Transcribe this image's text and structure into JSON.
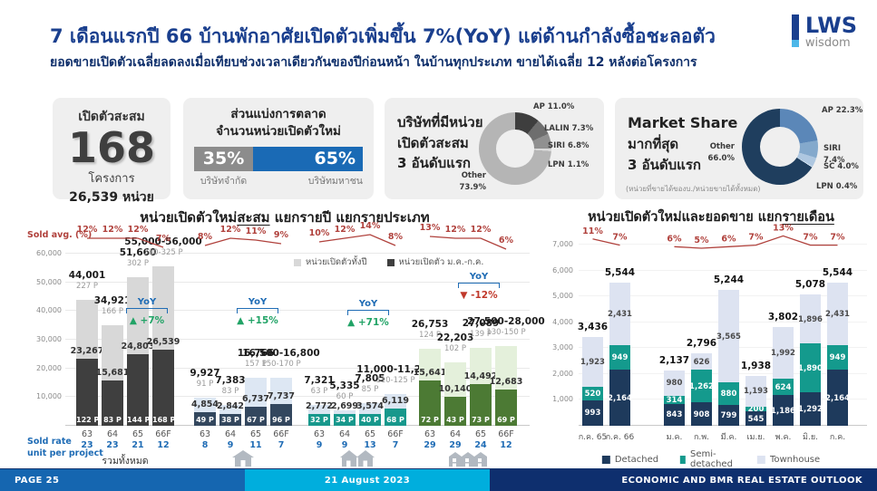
{
  "header": {
    "title": "7 เดือนแรกปี 66 บ้านพักอาศัยเปิดตัวเพิ่มขึ้น 7%(YoY) แต่ด้านกำลังซื้อชะลอตัว",
    "subtitle": "ยอดขายเปิดตัวเฉลี่ยลดลงเมื่อเทียบช่วงเวลาเดียวกันของปีก่อนหน้า ในบ้านทุกประเภท ขายได้เฉลี่ย 12 หลังต่อโครงการ",
    "logo_main": "LWS",
    "logo_sub": "wisdom"
  },
  "cards": {
    "launch_total": {
      "label": "เปิดตัวสะสม",
      "value": "168",
      "unit1": "โครงการ",
      "unit2": "26,539 หน่วย"
    },
    "market_split": {
      "title1": "ส่วนแบ่งการตลาด",
      "title2": "จำนวนหน่วยเปิดตัวใหม่",
      "segments": [
        {
          "pct": 35,
          "label": "35%",
          "caption": "บริษัทจำกัด",
          "color": "#8c8c8c"
        },
        {
          "pct": 65,
          "label": "65%",
          "caption": "บริษัทมหาชน",
          "color": "#1a6ab5"
        }
      ]
    },
    "top_launch": {
      "line1": "บริษัทที่มีหน่วย",
      "line2": "เปิดตัวสะสม",
      "line3": "3 อันดับแรก"
    },
    "market_share": {
      "line1": "Market Share",
      "line2": "มากที่สุด",
      "line3": "3 อันดับแรก",
      "note": "(หน่วยที่ขายได้ของบ./หน่วยขายได้ทั้งหมด)"
    }
  },
  "chart_data": [
    {
      "id": "top_launch_donut",
      "type": "pie",
      "slices": [
        {
          "name": "AP",
          "pct": "11.0%",
          "value": 11.0,
          "color": "#3e3e3e"
        },
        {
          "name": "LALIN",
          "pct": "7.3%",
          "value": 7.3,
          "color": "#6e6e6e"
        },
        {
          "name": "SIRI",
          "pct": "6.8%",
          "value": 6.8,
          "color": "#909090"
        },
        {
          "name": "LPN",
          "pct": "1.1%",
          "value": 1.1,
          "color": "#d9d9d9"
        },
        {
          "name": "Other",
          "pct": "73.9%",
          "value": 73.9,
          "color": "#b5b5b5",
          "two_line": true
        }
      ]
    },
    {
      "id": "market_share_donut",
      "type": "pie",
      "slices": [
        {
          "name": "AP",
          "pct": "22.3%",
          "value": 22.3,
          "color": "#5b87b8"
        },
        {
          "name": "SIRI",
          "pct": "7.4%",
          "value": 7.4,
          "color": "#84a9cc"
        },
        {
          "name": "SC",
          "pct": "4.0%",
          "value": 4.0,
          "color": "#aec7e0"
        },
        {
          "name": "LPN",
          "pct": "0.4%",
          "value": 0.4,
          "color": "#d3e2ef"
        },
        {
          "name": "Other",
          "pct": "66.0%",
          "value": 66.0,
          "color": "#1f3e5e",
          "two_line": true
        }
      ]
    },
    {
      "id": "launch_by_year",
      "type": "bar",
      "title": {
        "pre": "หน่วยเปิดตัวใหม่",
        "underline": "สะสม",
        "post": " แยกรายปี แยกรายประเภท"
      },
      "sold_avg_label": "Sold avg. (%)",
      "sold_rate_label1": "Sold rate",
      "sold_rate_label2": "unit per project",
      "legend": [
        {
          "label": "หน่วยเปิดตัวทั้งปี",
          "color": "#d8d8d8"
        },
        {
          "label": "หน่วยเปิดตัว ม.ค.-ก.ค.",
          "color": "#3f3f3f"
        }
      ],
      "ylim": [
        0,
        60000
      ],
      "yticks": [
        10000,
        20000,
        30000,
        40000,
        50000,
        60000
      ],
      "groups": [
        {
          "caption": "รวมทั้งหมด",
          "icon": "none",
          "light": "#d8d8d8",
          "dark": "#3f3f3f",
          "yoy": {
            "label": "YoY",
            "value": "+7%",
            "direction": "up"
          },
          "years": [
            "63",
            "64",
            "65",
            "66F"
          ],
          "sold_rates": [
            "23",
            "23",
            "21",
            "12"
          ],
          "sold_avg_pct": [
            12,
            12,
            12,
            7
          ],
          "totals": [
            44001,
            34921,
            51660,
            55500
          ],
          "total_labels": [
            "44,001",
            "34,921",
            "51,660",
            "55,000-56,000"
          ],
          "project_labels": [
            "227 P",
            "166 P",
            "302 P",
            "310-325 P"
          ],
          "parts": [
            23267,
            15681,
            24803,
            26539
          ],
          "part_labels": [
            "23,267",
            "15,681",
            "24,803",
            "26,539"
          ],
          "rate_labels": [
            "122 P",
            "83 P",
            "144 P",
            "168 P"
          ]
        },
        {
          "caption": "",
          "icon": "house-single",
          "light": "#dde7f3",
          "dark": "#33475e",
          "yoy": {
            "label": "YoY",
            "value": "+15%",
            "direction": "up"
          },
          "years": [
            "63",
            "64",
            "65",
            "66F"
          ],
          "sold_rates": [
            "8",
            "9",
            "11",
            "7"
          ],
          "sold_avg_pct": [
            8,
            12,
            11,
            9
          ],
          "totals": [
            9927,
            7383,
            16766,
            16650
          ],
          "total_labels": [
            "9,927",
            "7,383",
            "16,766",
            "16,500-16,800"
          ],
          "project_labels": [
            "91 P",
            "83 P",
            "157 P",
            "150-170 P"
          ],
          "parts": [
            4854,
            2842,
            6737,
            7737
          ],
          "part_labels": [
            "4,854",
            "2,842",
            "6,737",
            "7,737"
          ],
          "rate_labels": [
            "49 P",
            "38 P",
            "67 P",
            "96 P"
          ]
        },
        {
          "caption": "",
          "icon": "house-twin",
          "light": "#dbe5f1",
          "dark": "#17988c",
          "yoy": {
            "label": "YoY",
            "value": "+71%",
            "direction": "up"
          },
          "years": [
            "63",
            "64",
            "65",
            "66F"
          ],
          "sold_rates": [
            "9",
            "9",
            "13",
            "7"
          ],
          "sold_avg_pct": [
            10,
            12,
            14,
            8
          ],
          "totals": [
            7321,
            5335,
            7805,
            11100
          ],
          "total_labels": [
            "7,321",
            "5,335",
            "7,805",
            "11,000-11,200"
          ],
          "project_labels": [
            "63 P",
            "60 P",
            "85 P",
            "110-125 P"
          ],
          "parts": [
            2772,
            2699,
            3574,
            6119
          ],
          "part_labels": [
            "2,772",
            "2,699",
            "3,574",
            "6,119"
          ],
          "rate_labels": [
            "32 P",
            "34 P",
            "40 P",
            "68 P"
          ]
        },
        {
          "caption": "",
          "icon": "house-row",
          "light": "#e4f0db",
          "dark": "#4c7a34",
          "yoy": {
            "label": "YoY",
            "value": "-12%",
            "direction": "down"
          },
          "years": [
            "63",
            "64",
            "65",
            "66F"
          ],
          "sold_rates": [
            "29",
            "29",
            "24",
            "12"
          ],
          "sold_avg_pct": [
            13,
            12,
            12,
            6
          ],
          "totals": [
            26753,
            22203,
            27089,
            27750
          ],
          "total_labels": [
            "26,753",
            "22,203",
            "27,089",
            "27,500-28,000"
          ],
          "project_labels": [
            "124 P",
            "102 P",
            "139 P",
            "130-150 P"
          ],
          "parts": [
            15641,
            10140,
            14492,
            12683
          ],
          "part_labels": [
            "15,641",
            "10,140",
            "14,492",
            "12,683"
          ],
          "rate_labels": [
            "72 P",
            "43 P",
            "73 P",
            "69 P"
          ]
        }
      ]
    },
    {
      "id": "launch_by_month",
      "type": "stacked_bar",
      "title": {
        "pre": "หน่วยเปิดตัวใหม่และยอดขาย แยก",
        "underline": "รายเดือน",
        "post": ""
      },
      "ylim": [
        0,
        7000
      ],
      "yticks": [
        1000,
        2000,
        3000,
        4000,
        5000,
        6000,
        7000
      ],
      "categories": [
        "ก.ค. 65",
        "ก.ค. 66",
        "ม.ค.",
        "ก.พ.",
        "มี.ค.",
        "เม.ย.",
        "พ.ค.",
        "มิ.ย.",
        "ก.ค."
      ],
      "pcts": [
        11,
        7,
        6,
        5,
        6,
        7,
        13,
        7,
        7
      ],
      "series": [
        {
          "name": "Detached",
          "color": "#1e3a5c",
          "values": [
            993,
            2164,
            843,
            908,
            799,
            545,
            1186,
            1292,
            2164
          ]
        },
        {
          "name": "Semi-detached",
          "color": "#149a8d",
          "values": [
            520,
            949,
            314,
            1262,
            880,
            200,
            624,
            1890,
            949
          ]
        },
        {
          "name": "Townhouse",
          "color": "#dde3f1",
          "values": [
            1923,
            2431,
            980,
            626,
            3565,
            1193,
            1992,
            1896,
            2431
          ]
        }
      ],
      "totals": [
        3436,
        5544,
        2137,
        2796,
        5244,
        1938,
        3802,
        5078,
        5544
      ]
    }
  ],
  "footer": {
    "page": "PAGE 25",
    "date": "21 August 2023",
    "right": "ECONOMIC AND BMR REAL ESTATE OUTLOOK"
  }
}
